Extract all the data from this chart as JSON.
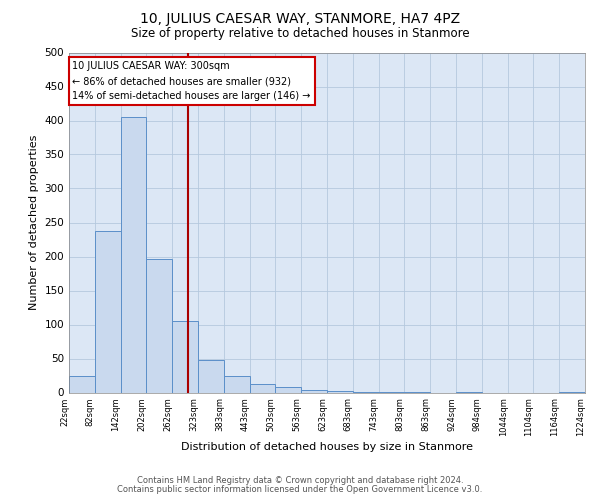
{
  "title": "10, JULIUS CAESAR WAY, STANMORE, HA7 4PZ",
  "subtitle": "Size of property relative to detached houses in Stanmore",
  "xlabel": "Distribution of detached houses by size in Stanmore",
  "ylabel": "Number of detached properties",
  "bar_color": "#c9d9ee",
  "bar_edge_color": "#5b8fc9",
  "bg_color": "#dce7f5",
  "grid_color": "#b5c8de",
  "vline_x": 300,
  "vline_color": "#aa0000",
  "annotation_line1": "10 JULIUS CAESAR WAY: 300sqm",
  "annotation_line2": "← 86% of detached houses are smaller (932)",
  "annotation_line3": "14% of semi-detached houses are larger (146) →",
  "bin_edges": [
    22,
    82,
    142,
    202,
    262,
    323,
    383,
    443,
    503,
    563,
    623,
    683,
    743,
    803,
    863,
    924,
    984,
    1044,
    1104,
    1164,
    1224
  ],
  "bar_heights": [
    25,
    237,
    405,
    197,
    105,
    48,
    24,
    12,
    8,
    3,
    2,
    1,
    1,
    1,
    0,
    1,
    0,
    0,
    0,
    1
  ],
  "tick_labels": [
    "22sqm",
    "82sqm",
    "142sqm",
    "202sqm",
    "262sqm",
    "323sqm",
    "383sqm",
    "443sqm",
    "503sqm",
    "563sqm",
    "623sqm",
    "683sqm",
    "743sqm",
    "803sqm",
    "863sqm",
    "924sqm",
    "984sqm",
    "1044sqm",
    "1104sqm",
    "1164sqm",
    "1224sqm"
  ],
  "ylim": [
    0,
    500
  ],
  "yticks": [
    0,
    50,
    100,
    150,
    200,
    250,
    300,
    350,
    400,
    450,
    500
  ],
  "footnote1": "Contains HM Land Registry data © Crown copyright and database right 2024.",
  "footnote2": "Contains public sector information licensed under the Open Government Licence v3.0."
}
